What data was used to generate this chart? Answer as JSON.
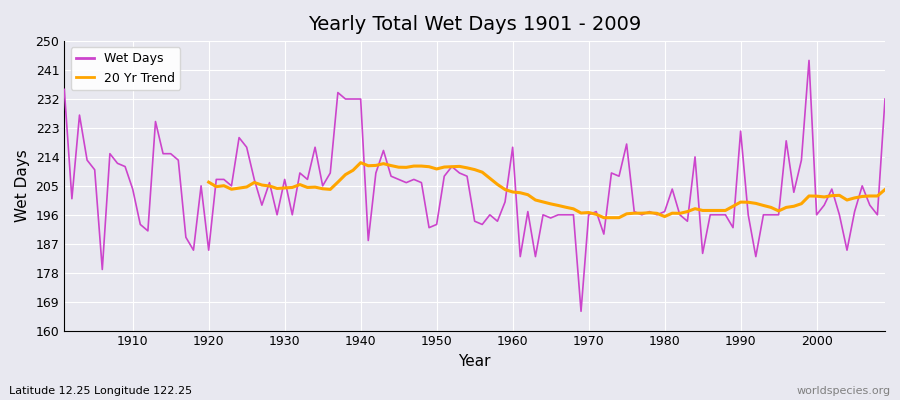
{
  "title": "Yearly Total Wet Days 1901 - 2009",
  "xlabel": "Year",
  "ylabel": "Wet Days",
  "bottom_left_label": "Latitude 12.25 Longitude 122.25",
  "bottom_right_label": "worldspecies.org",
  "ylim": [
    160,
    250
  ],
  "yticks": [
    160,
    169,
    178,
    187,
    196,
    205,
    214,
    223,
    232,
    241,
    250
  ],
  "xlim": [
    1901,
    2009
  ],
  "xticks": [
    1910,
    1920,
    1930,
    1940,
    1950,
    1960,
    1970,
    1980,
    1990,
    2000
  ],
  "line_color": "#cc44cc",
  "trend_color": "#ffa500",
  "bg_color": "#e8e8f0",
  "trend_window": 20,
  "wet_days": [
    235,
    201,
    227,
    213,
    210,
    179,
    215,
    212,
    211,
    204,
    193,
    191,
    225,
    215,
    215,
    213,
    189,
    185,
    205,
    185,
    207,
    207,
    205,
    220,
    217,
    207,
    199,
    206,
    196,
    207,
    196,
    209,
    207,
    217,
    205,
    209,
    234,
    232,
    232,
    232,
    188,
    209,
    216,
    208,
    207,
    206,
    207,
    206,
    192,
    193,
    208,
    211,
    209,
    208,
    194,
    193,
    196,
    194,
    200,
    217,
    183,
    197,
    183,
    196,
    195,
    196,
    196,
    196,
    166,
    196,
    197,
    190,
    209,
    208,
    218,
    197,
    196,
    197,
    196,
    197,
    204,
    196,
    194,
    214,
    184,
    196,
    196,
    196,
    192,
    222,
    196,
    183,
    196,
    196,
    196,
    219,
    203,
    213,
    244,
    196,
    199,
    204,
    196,
    185,
    197,
    205,
    199,
    196,
    232
  ]
}
